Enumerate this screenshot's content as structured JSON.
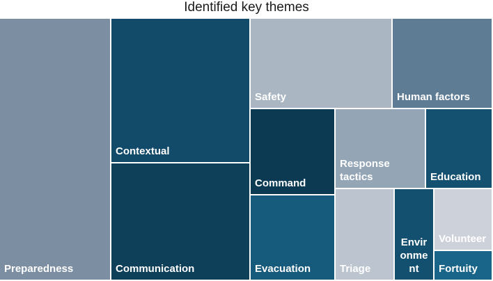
{
  "chart_data": {
    "type": "treemap",
    "title": "Identified key themes",
    "tiles": [
      {
        "name": "Preparedness",
        "label": "Preparedness",
        "color": "#7c8fa2"
      },
      {
        "name": "Contextual",
        "label": "Contextual",
        "color": "#124a69"
      },
      {
        "name": "Communication",
        "label": "Communication",
        "color": "#0f4059"
      },
      {
        "name": "Safety",
        "label": "Safety",
        "color": "#aab6c2"
      },
      {
        "name": "Human factors",
        "label": "Human factors",
        "color": "#5f7c95"
      },
      {
        "name": "Command",
        "label": "Command",
        "color": "#0b3a52"
      },
      {
        "name": "Evacuation",
        "label": "Evacuation",
        "color": "#165a7c"
      },
      {
        "name": "Response tactics",
        "label": "Response\ntactics",
        "color": "#94a6b6"
      },
      {
        "name": "Education",
        "label": "Education",
        "color": "#14506f"
      },
      {
        "name": "Triage",
        "label": "Triage",
        "color": "#bcc5cf"
      },
      {
        "name": "Environment",
        "label": "Envir\nonme\nnt",
        "color": "#134f6e"
      },
      {
        "name": "Volunteer",
        "label": "Volunteer",
        "color": "#cdd2da"
      },
      {
        "name": "Fortuity",
        "label": "Fortuity",
        "color": "#19658a"
      }
    ]
  }
}
